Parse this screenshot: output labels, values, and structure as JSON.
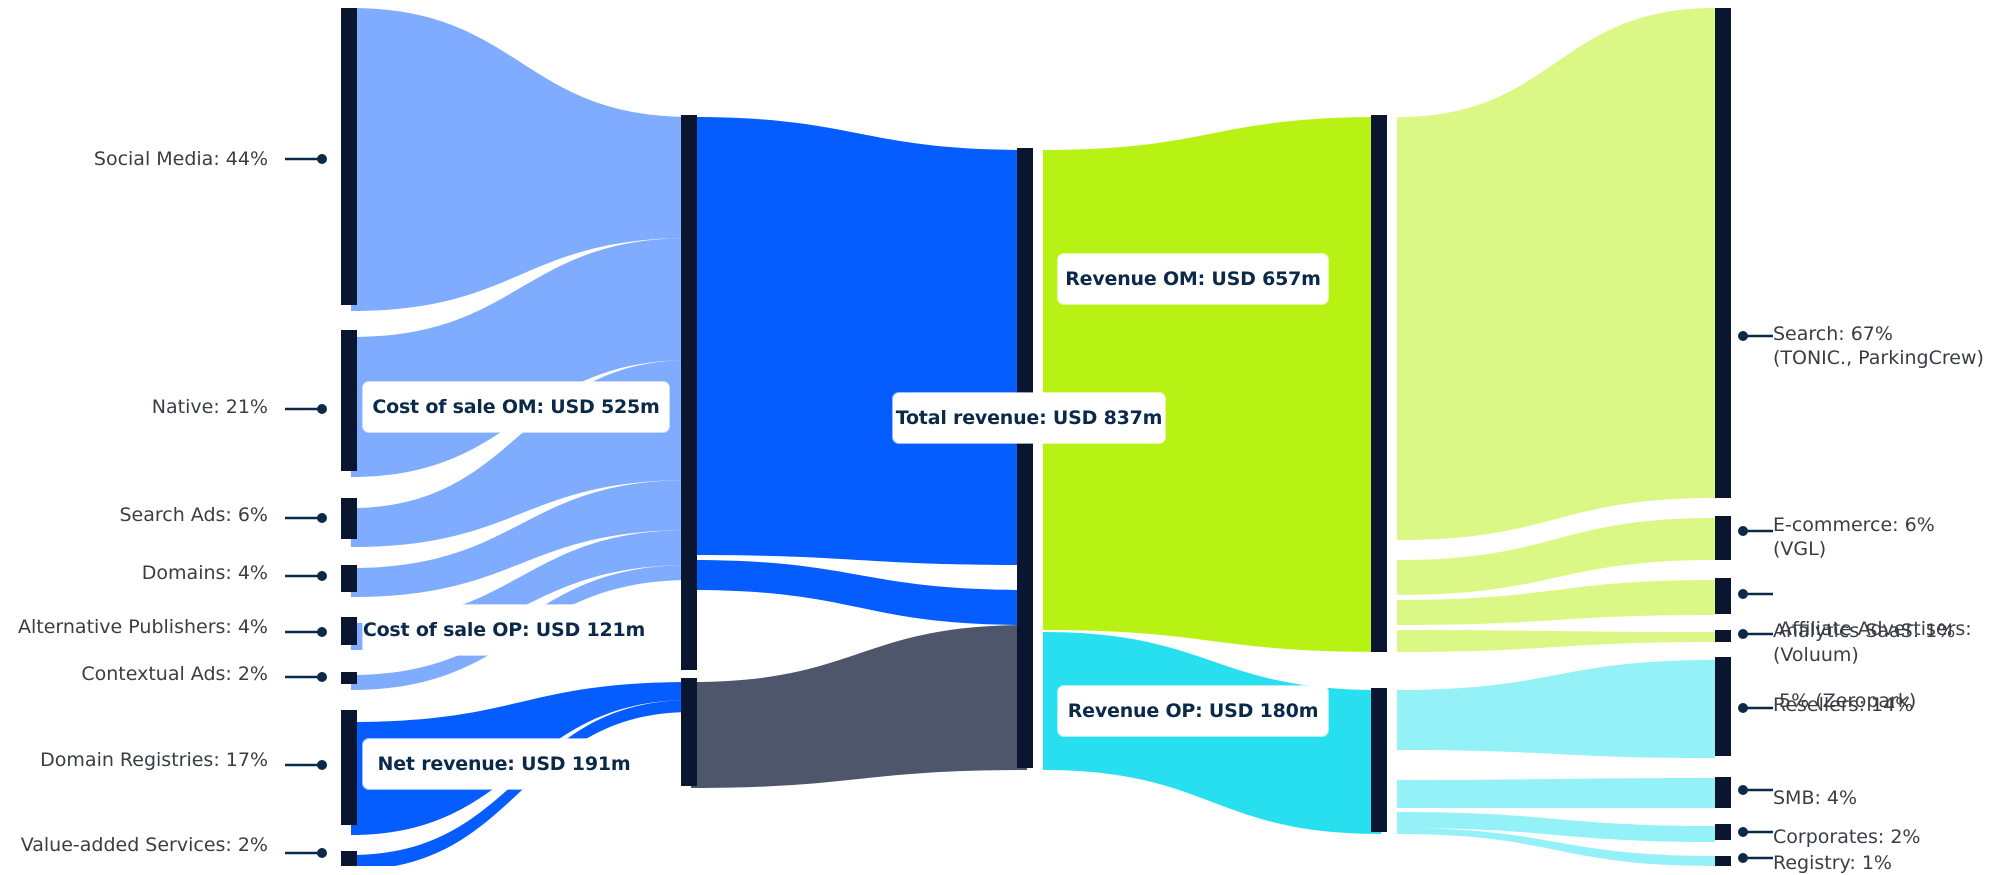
{
  "colors": {
    "bar": "#0a1630",
    "light_blue": "#80acff",
    "blue": "#055cff",
    "slate": "#4d566a",
    "lime": "#b8f214",
    "light_lime": "#dbf887",
    "cyan": "#28dff0",
    "light_cyan": "#95f1f8",
    "dot": "#0b2a4a"
  },
  "left_labels": [
    {
      "text": "Social Media: 44%"
    },
    {
      "text": "Native: 21%"
    },
    {
      "text": "Search Ads: 6%"
    },
    {
      "text": "Domains: 4%"
    },
    {
      "text": "Alternative Publishers: 4%"
    },
    {
      "text": "Contextual Ads: 2%"
    },
    {
      "text": "Domain Registries: 17%"
    },
    {
      "text": "Value-added Services: 2%"
    }
  ],
  "right_labels": [
    {
      "line1": "Search: 67%",
      "line2": "(TONIC., ParkingCrew)"
    },
    {
      "line1": "E-commerce: 6%",
      "line2": "(VGL)"
    },
    {
      "line1": " Affiliate Advertisers:",
      "line2": " 5% (Zeropark)"
    },
    {
      "line1": "Analytics SaaS: 1%",
      "line2": "(Voluum)"
    },
    {
      "line1": "Resellers: 14%",
      "line2": ""
    },
    {
      "line1": "SMB: 4%",
      "line2": ""
    },
    {
      "line1": "Corporates: 2%",
      "line2": ""
    },
    {
      "line1": "Registry: 1%",
      "line2": ""
    }
  ],
  "boxes": {
    "cost_om": "Cost of sale OM: USD 525m",
    "cost_op": "Cost of sale OP: USD 121m",
    "net_revenue": "Net revenue: USD 191m",
    "total_revenue": "Total revenue: USD 837m",
    "revenue_om": "Revenue OM: USD 657m",
    "revenue_op": "Revenue OP: USD 180m"
  }
}
